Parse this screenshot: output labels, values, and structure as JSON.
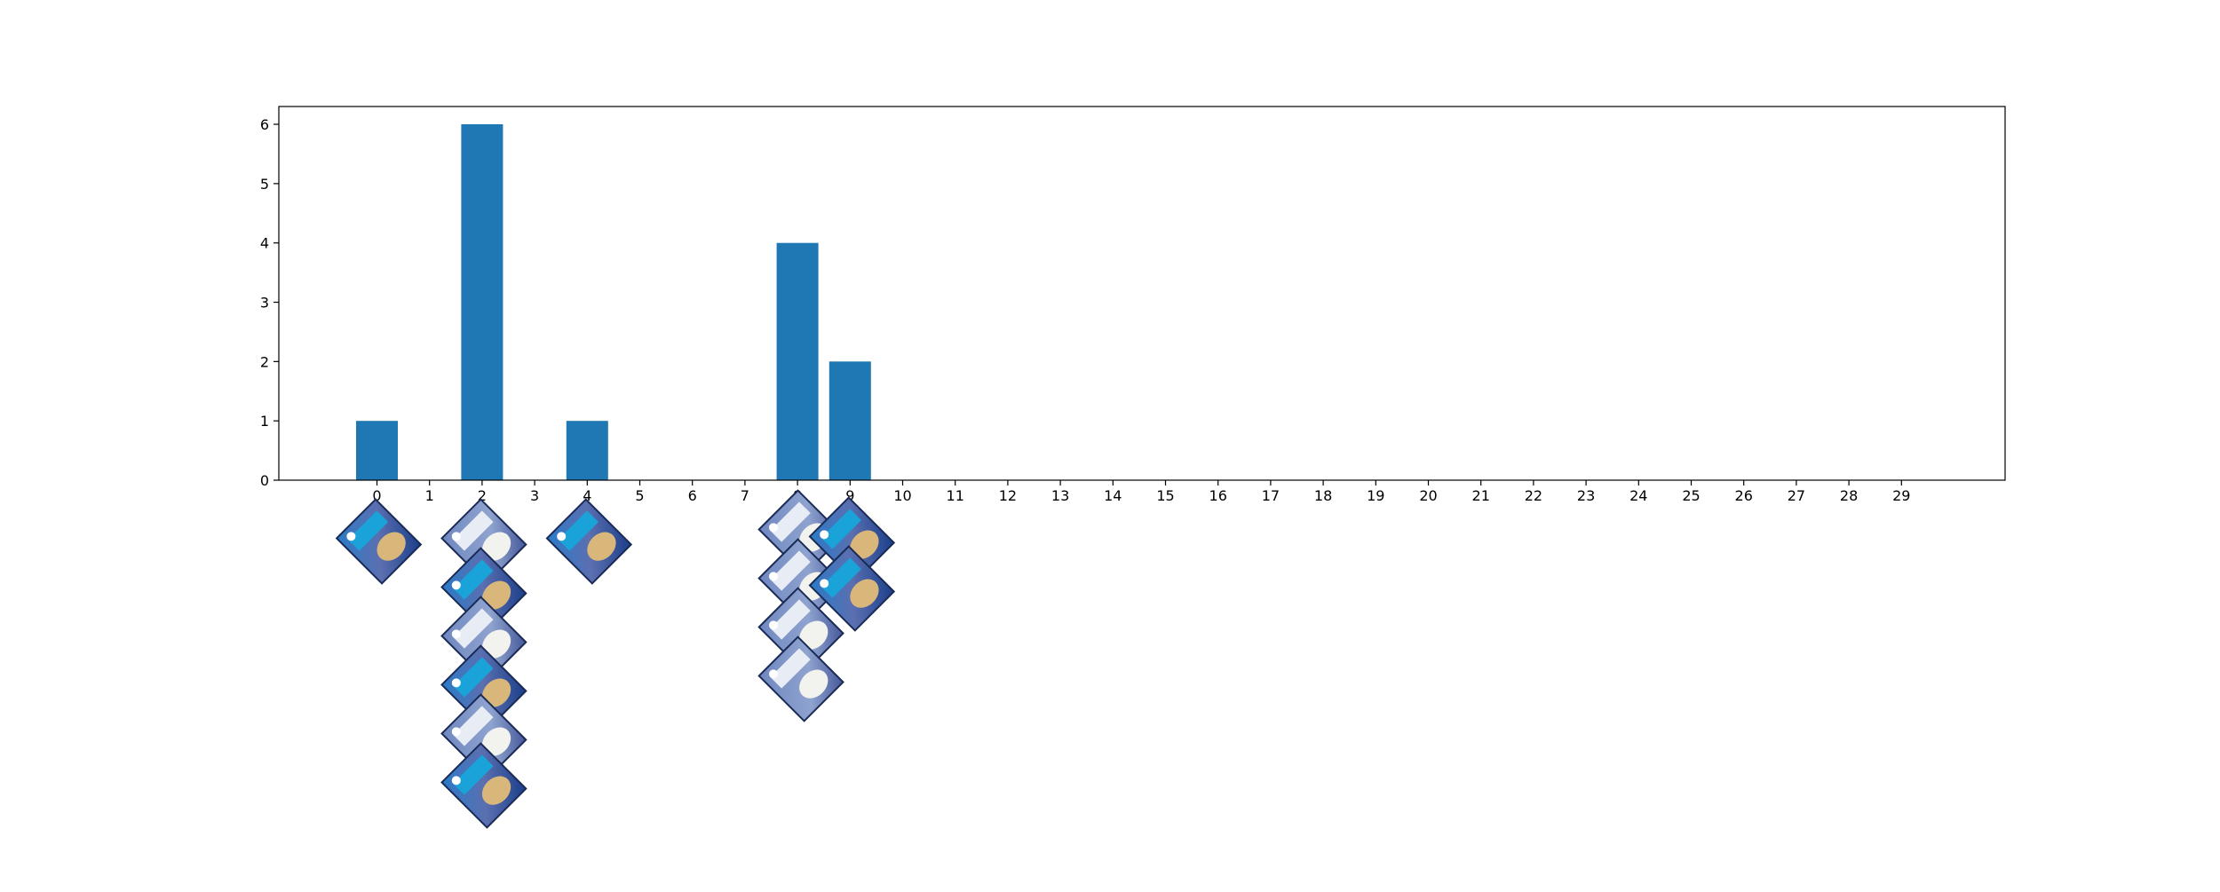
{
  "chart_data": {
    "type": "bar",
    "categories": [
      "0",
      "1",
      "2",
      "3",
      "4",
      "5",
      "6",
      "7",
      "8",
      "9",
      "10",
      "11",
      "12",
      "13",
      "14",
      "15",
      "16",
      "17",
      "18",
      "19",
      "20",
      "21",
      "22",
      "23",
      "24",
      "25",
      "26",
      "27",
      "28",
      "29"
    ],
    "values": [
      1,
      0,
      6,
      0,
      1,
      0,
      0,
      0,
      4,
      2,
      0,
      0,
      0,
      0,
      0,
      0,
      0,
      0,
      0,
      0,
      0,
      0,
      0,
      0,
      0,
      0,
      0,
      0,
      0,
      0
    ],
    "title": "",
    "xlabel": "",
    "ylabel": "",
    "ylim": [
      0,
      6.3
    ],
    "yticks": [
      "0",
      "1",
      "2",
      "3",
      "4",
      "5",
      "6"
    ],
    "grid": false,
    "bar_color": "#1f77b4",
    "thumbnail_counts": [
      1,
      0,
      6,
      0,
      1,
      0,
      0,
      0,
      4,
      2
    ]
  }
}
